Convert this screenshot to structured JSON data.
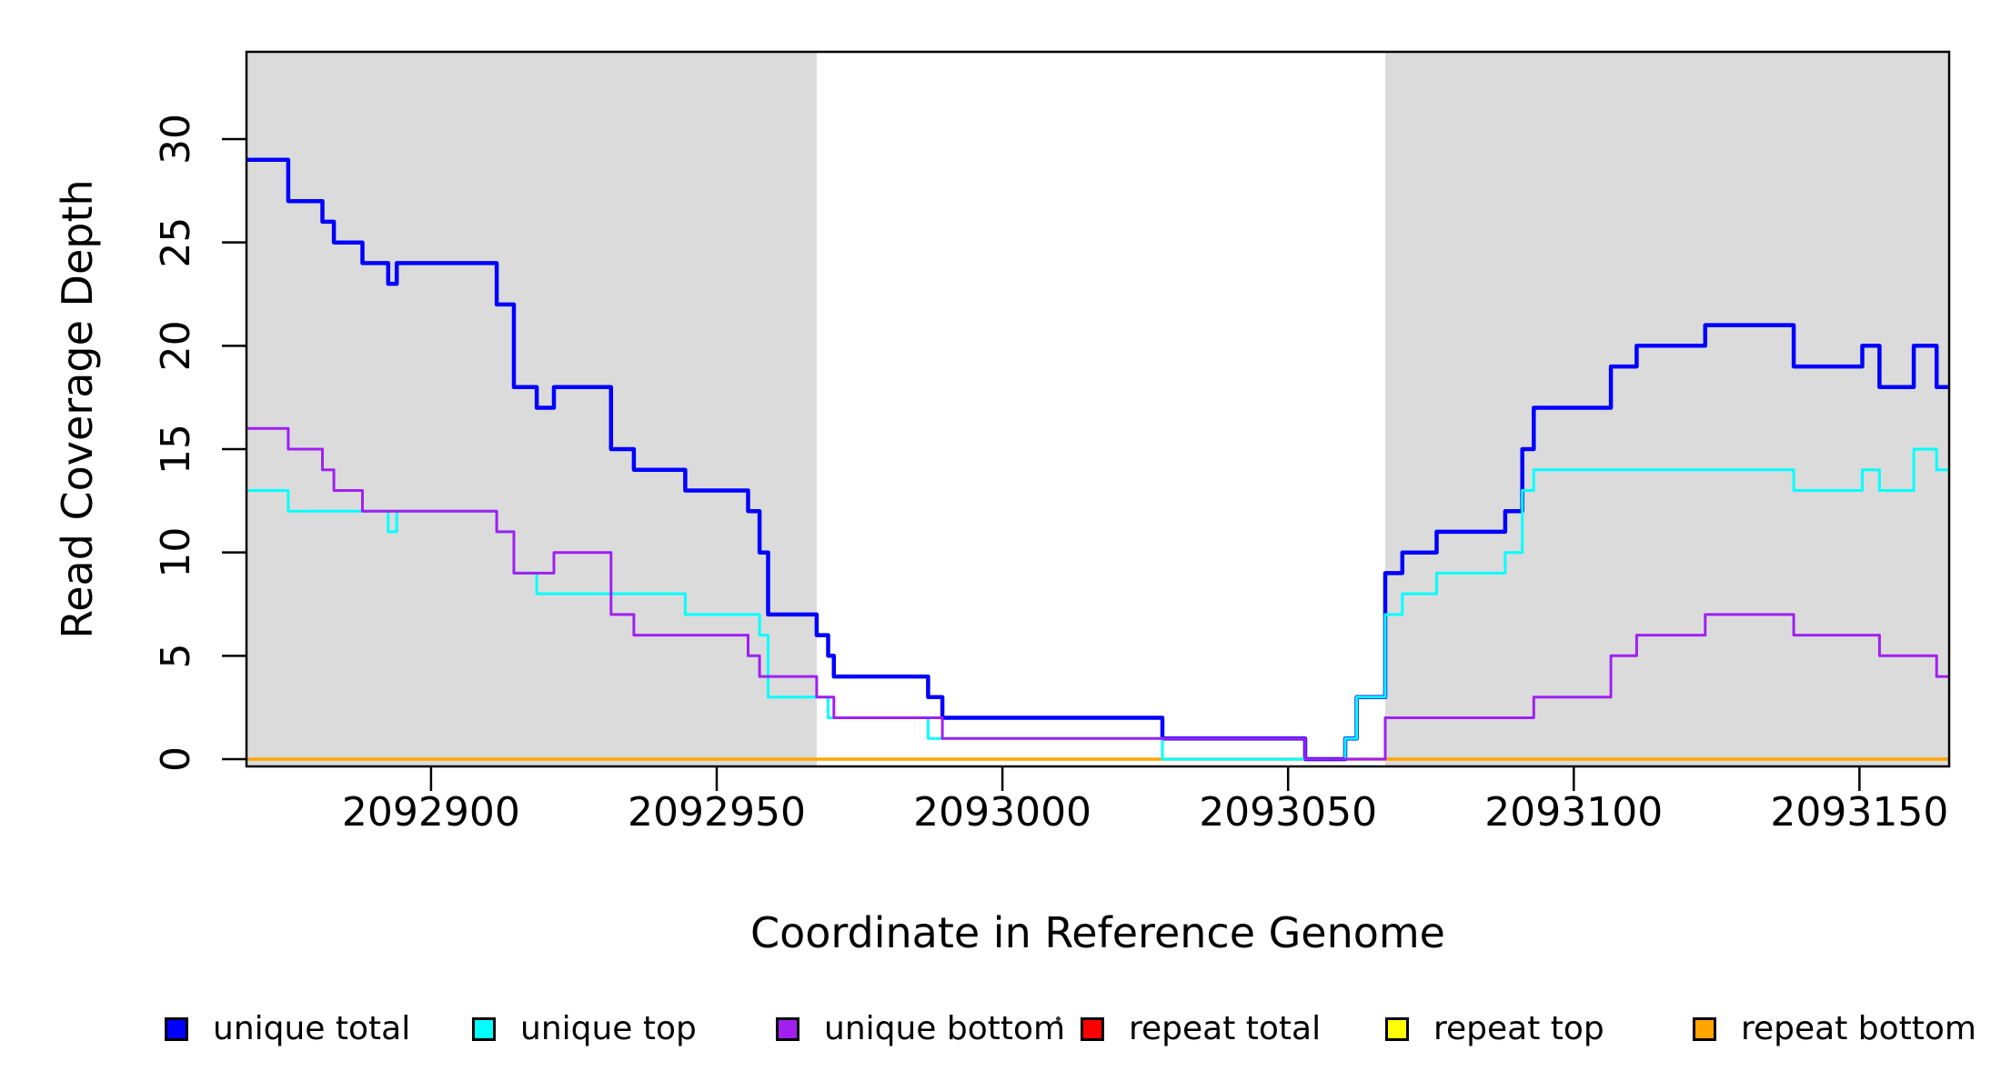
{
  "figure": {
    "background": "#ffffff",
    "border_color": "#000000",
    "shade_color": "#dbdbdb"
  },
  "chart_data": {
    "type": "line",
    "subtype": "step-after",
    "title": "",
    "xlabel": "Coordinate in Reference Genome",
    "ylabel": "Read Coverage Depth",
    "xlim": [
      2092867.7,
      2093165.7
    ],
    "ylim": [
      0,
      34
    ],
    "grid": false,
    "legend_position": "bottom-horizontal",
    "x_ticks": [
      2092900,
      2092950,
      2093000,
      2093050,
      2093100,
      2093150
    ],
    "y_ticks": [
      0,
      5,
      10,
      15,
      20,
      25,
      30
    ],
    "shaded_regions": [
      {
        "x0": 2092867.7,
        "x1": 2092967.5
      },
      {
        "x0": 2093067.0,
        "x1": 2093165.7
      }
    ],
    "series": [
      {
        "name": "repeat total",
        "color": "#ff0000",
        "width": 3,
        "points": [
          [
            2092867.7,
            0
          ],
          [
            2093165.7,
            0
          ]
        ]
      },
      {
        "name": "repeat top",
        "color": "#ffff00",
        "width": 3,
        "points": [
          [
            2092867.7,
            0
          ],
          [
            2093165.7,
            0
          ]
        ]
      },
      {
        "name": "repeat bottom",
        "color": "#ffa500",
        "width": 3.5,
        "points": [
          [
            2092867.7,
            0
          ],
          [
            2093165.7,
            0
          ]
        ]
      },
      {
        "name": "unique total",
        "color": "#0000ff",
        "width": 4.5,
        "points": [
          [
            2092867.7,
            29
          ],
          [
            2092875,
            27
          ],
          [
            2092881,
            26
          ],
          [
            2092883,
            25
          ],
          [
            2092888,
            24
          ],
          [
            2092892.5,
            23
          ],
          [
            2092894,
            24
          ],
          [
            2092911.5,
            22
          ],
          [
            2092914.5,
            18
          ],
          [
            2092918.5,
            17
          ],
          [
            2092921.5,
            18
          ],
          [
            2092931.5,
            15
          ],
          [
            2092935.5,
            14
          ],
          [
            2092944.5,
            13
          ],
          [
            2092955.5,
            12
          ],
          [
            2092957.5,
            10
          ],
          [
            2092959,
            7
          ],
          [
            2092967.5,
            6
          ],
          [
            2092969.5,
            5
          ],
          [
            2092970.5,
            4
          ],
          [
            2092987,
            3
          ],
          [
            2092989.5,
            2
          ],
          [
            2093028,
            1
          ],
          [
            2093053,
            0
          ],
          [
            2093060,
            1
          ],
          [
            2093062,
            3
          ],
          [
            2093067,
            9
          ],
          [
            2093070,
            10
          ],
          [
            2093076,
            11
          ],
          [
            2093088,
            12
          ],
          [
            2093091,
            15
          ],
          [
            2093093,
            17
          ],
          [
            2093106.5,
            19
          ],
          [
            2093111,
            20
          ],
          [
            2093123,
            21
          ],
          [
            2093138.5,
            19
          ],
          [
            2093150.5,
            20
          ],
          [
            2093153.5,
            18
          ],
          [
            2093159.5,
            20
          ],
          [
            2093163.5,
            18
          ],
          [
            2093165.7,
            18
          ]
        ]
      },
      {
        "name": "unique top",
        "color": "#00ffff",
        "width": 3,
        "points": [
          [
            2092867.7,
            13
          ],
          [
            2092875,
            12
          ],
          [
            2092892.5,
            11
          ],
          [
            2092894,
            12
          ],
          [
            2092911.5,
            11
          ],
          [
            2092914.5,
            9
          ],
          [
            2092918.5,
            8
          ],
          [
            2092944.5,
            7
          ],
          [
            2092957.5,
            6
          ],
          [
            2092959,
            3
          ],
          [
            2092969.5,
            2
          ],
          [
            2092987,
            1
          ],
          [
            2093028,
            0
          ],
          [
            2093060,
            1
          ],
          [
            2093062,
            3
          ],
          [
            2093067,
            7
          ],
          [
            2093070,
            8
          ],
          [
            2093076,
            9
          ],
          [
            2093088,
            10
          ],
          [
            2093091,
            13
          ],
          [
            2093093,
            14
          ],
          [
            2093138.5,
            13
          ],
          [
            2093150.5,
            14
          ],
          [
            2093153.5,
            13
          ],
          [
            2093159.5,
            15
          ],
          [
            2093163.5,
            14
          ],
          [
            2093165.7,
            14
          ]
        ]
      },
      {
        "name": "unique bottom",
        "color": "#a020f0",
        "width": 3,
        "points": [
          [
            2092867.7,
            16
          ],
          [
            2092875,
            15
          ],
          [
            2092881,
            14
          ],
          [
            2092883,
            13
          ],
          [
            2092888,
            12
          ],
          [
            2092911.5,
            11
          ],
          [
            2092914.5,
            9
          ],
          [
            2092921.5,
            10
          ],
          [
            2092931.5,
            7
          ],
          [
            2092935.5,
            6
          ],
          [
            2092955.5,
            5
          ],
          [
            2092957.5,
            4
          ],
          [
            2092967.5,
            3
          ],
          [
            2092970.5,
            2
          ],
          [
            2092989.5,
            1
          ],
          [
            2093053,
            0
          ],
          [
            2093067,
            2
          ],
          [
            2093093,
            3
          ],
          [
            2093106.5,
            5
          ],
          [
            2093111,
            6
          ],
          [
            2093123,
            7
          ],
          [
            2093138.5,
            6
          ],
          [
            2093153.5,
            5
          ],
          [
            2093163.5,
            4
          ],
          [
            2093165.7,
            4
          ]
        ]
      }
    ],
    "legend": [
      {
        "label": "unique total",
        "color": "#0000ff"
      },
      {
        "label": "unique top",
        "color": "#00ffff"
      },
      {
        "label": "unique bottom",
        "color": "#a020f0"
      },
      {
        "label": "repeat total",
        "color": "#ff0000"
      },
      {
        "label": "repeat top",
        "color": "#ffff00"
      },
      {
        "label": "repeat bottom",
        "color": "#ffa500"
      }
    ]
  }
}
